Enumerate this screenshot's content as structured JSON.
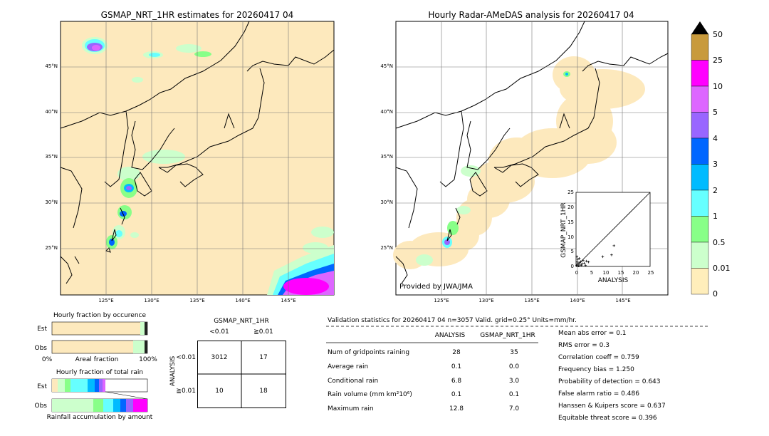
{
  "left_map": {
    "title": "GSMAP_NRT_1HR estimates for 20260417 04",
    "lat_labels": [
      "45°N",
      "40°N",
      "35°N",
      "30°N",
      "25°N"
    ],
    "lon_labels": [
      "125°E",
      "130°E",
      "135°E",
      "140°E",
      "145°E"
    ]
  },
  "right_map": {
    "title": "Hourly Radar-AMeDAS analysis for 20260417 04",
    "lat_labels": [
      "45°N",
      "40°N",
      "35°N",
      "30°N",
      "25°N"
    ],
    "lon_labels": [
      "125°E",
      "130°E",
      "135°E",
      "140°E",
      "145°E"
    ],
    "credit": "Provided by JWA/JMA"
  },
  "colorbar": {
    "labels": [
      "50",
      "25",
      "10",
      "5",
      "4",
      "3",
      "2",
      "1",
      "0.5",
      "0.01",
      "0"
    ],
    "colors": [
      "#c89a3c",
      "#ff00ff",
      "#dd66ff",
      "#9966ff",
      "#0066ff",
      "#00bbff",
      "#66ffff",
      "#88ff88",
      "#ccffcc",
      "#ffeebb"
    ]
  },
  "scatter_inset": {
    "xlabel": "ANALYSIS",
    "ylabel": "GSMAP_NRT_1HR",
    "ticks": [
      "0",
      "5",
      "10",
      "15",
      "20",
      "25"
    ]
  },
  "occurrence": {
    "title": "Hourly fraction by occurence",
    "row_labels": [
      "Est",
      "Obs"
    ],
    "axis_left": "0%",
    "axis_mid": "Areal fraction",
    "axis_right": "100%"
  },
  "total_rain": {
    "title": "Hourly fraction of total rain",
    "row_labels": [
      "Est",
      "Obs"
    ],
    "footer": "Rainfall accumulation by amount"
  },
  "contingency": {
    "title": "GSMAP_NRT_1HR",
    "col_labels": [
      "<0.01",
      "≧0.01"
    ],
    "row_axis": "ANALYSIS",
    "row_labels": [
      "<0.01",
      "≧0.01"
    ],
    "cells": [
      [
        "3012",
        "17"
      ],
      [
        "10",
        "18"
      ]
    ]
  },
  "validation": {
    "header": "Validation statistics for 20260417 04  n=3057 Valid. grid=0.25° Units=mm/hr.",
    "col_headers": [
      "ANALYSIS",
      "GSMAP_NRT_1HR"
    ],
    "rows": [
      {
        "label": "Num of gridpoints raining",
        "analysis": "28",
        "gsmap": "35"
      },
      {
        "label": "Average rain",
        "analysis": "0.1",
        "gsmap": "0.0"
      },
      {
        "label": "Conditional rain",
        "analysis": "6.8",
        "gsmap": "3.0"
      },
      {
        "label": "Rain volume (mm km²10⁶)",
        "analysis": "0.1",
        "gsmap": "0.1"
      },
      {
        "label": "Maximum rain",
        "analysis": "12.8",
        "gsmap": "7.0"
      }
    ],
    "scores": [
      "Mean abs error =    0.1",
      "RMS error =    0.3",
      "Correlation coeff =  0.759",
      "Frequency bias =  1.250",
      "Probability of detection =  0.643",
      "False alarm ratio =  0.486",
      "Hanssen & Kuipers score =  0.637",
      "Equitable threat score =  0.396"
    ]
  },
  "chart_data": [
    {
      "type": "scatter",
      "title": "",
      "xlabel": "ANALYSIS",
      "ylabel": "GSMAP_NRT_1HR",
      "xlim": [
        0,
        25
      ],
      "ylim": [
        0,
        25
      ],
      "points": [
        {
          "x": 0.2,
          "y": 0.3
        },
        {
          "x": 0.5,
          "y": 0.8
        },
        {
          "x": 0.8,
          "y": 0.2
        },
        {
          "x": 1.0,
          "y": 1.2
        },
        {
          "x": 1.3,
          "y": 0.5
        },
        {
          "x": 1.6,
          "y": 1.6
        },
        {
          "x": 2.0,
          "y": 0.9
        },
        {
          "x": 2.4,
          "y": 2.0
        },
        {
          "x": 2.8,
          "y": 1.1
        },
        {
          "x": 0.3,
          "y": 3.3
        },
        {
          "x": 0.6,
          "y": 2.4
        },
        {
          "x": 1.1,
          "y": 2.7
        },
        {
          "x": 3.2,
          "y": 0.3
        },
        {
          "x": 3.5,
          "y": 1.8
        },
        {
          "x": 4.2,
          "y": 1.5
        },
        {
          "x": 9.0,
          "y": 3.3
        },
        {
          "x": 12.0,
          "y": 3.9
        },
        {
          "x": 12.8,
          "y": 7.0
        },
        {
          "x": 0.4,
          "y": 1.5
        },
        {
          "x": 1.8,
          "y": 0.4
        }
      ]
    }
  ]
}
